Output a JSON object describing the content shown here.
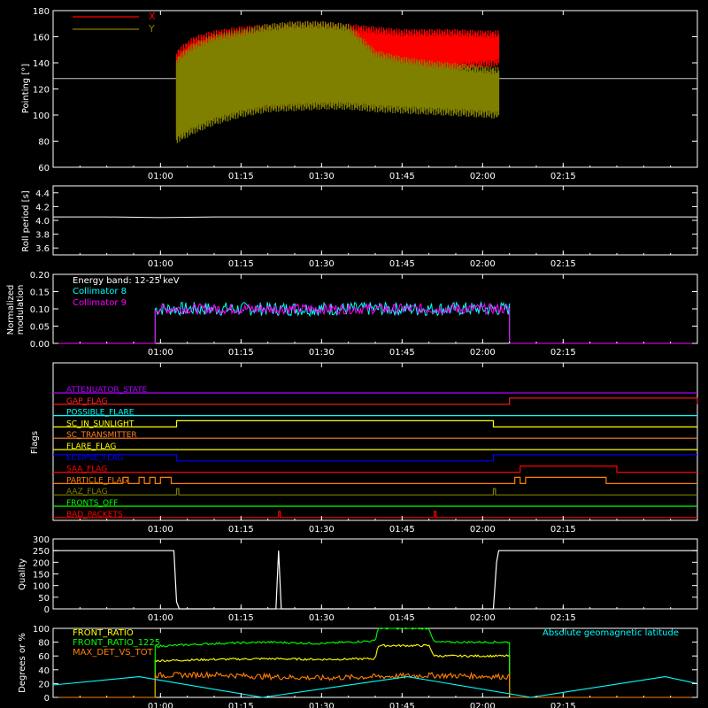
{
  "chart_data": [
    {
      "type": "line",
      "ylabel": "Pointing [°]",
      "ylim": [
        60,
        180
      ],
      "yticks": [
        60,
        80,
        100,
        120,
        140,
        160,
        180
      ],
      "xlim_minutes": [
        40,
        160
      ],
      "xticks": [
        "01:00",
        "01:15",
        "01:30",
        "01:45",
        "02:00",
        "02:15"
      ],
      "legend": [
        "X",
        "Y"
      ],
      "colors": {
        "X": "#ff0000",
        "Y": "#808000",
        "reference": "#c8c8c8"
      },
      "reference_line": 128,
      "series": [
        {
          "name": "X",
          "start_time": "01:03",
          "end_time": "02:03",
          "upper_envelope": [
            [
              63,
              150
            ],
            [
              66,
              160
            ],
            [
              70,
              165
            ],
            [
              75,
              168
            ],
            [
              80,
              170
            ],
            [
              85,
              172
            ],
            [
              90,
              172
            ],
            [
              95,
              170
            ],
            [
              100,
              168
            ],
            [
              105,
              166
            ],
            [
              110,
              166
            ],
            [
              115,
              166
            ],
            [
              120,
              165
            ],
            [
              123,
              165
            ]
          ],
          "lower_envelope": [
            [
              63,
              80
            ],
            [
              66,
              90
            ],
            [
              70,
              97
            ],
            [
              75,
              102
            ],
            [
              80,
              104
            ],
            [
              85,
              106
            ],
            [
              90,
              107
            ],
            [
              95,
              108
            ],
            [
              100,
              125
            ],
            [
              105,
              130
            ],
            [
              110,
              132
            ],
            [
              115,
              134
            ],
            [
              120,
              136
            ],
            [
              123,
              137
            ]
          ]
        },
        {
          "name": "Y",
          "start_time": "01:03",
          "end_time": "02:03",
          "upper_envelope": [
            [
              63,
              145
            ],
            [
              66,
              155
            ],
            [
              70,
              162
            ],
            [
              75,
              166
            ],
            [
              80,
              170
            ],
            [
              85,
              172
            ],
            [
              90,
              172
            ],
            [
              95,
              170
            ],
            [
              100,
              150
            ],
            [
              105,
              145
            ],
            [
              110,
              142
            ],
            [
              115,
              140
            ],
            [
              120,
              138
            ],
            [
              123,
              137
            ]
          ],
          "lower_envelope": [
            [
              63,
              78
            ],
            [
              66,
              85
            ],
            [
              70,
              92
            ],
            [
              75,
              98
            ],
            [
              80,
              102
            ],
            [
              85,
              103
            ],
            [
              90,
              104
            ],
            [
              95,
              104
            ],
            [
              100,
              102
            ],
            [
              105,
              101
            ],
            [
              110,
              100
            ],
            [
              115,
              99
            ],
            [
              120,
              98
            ],
            [
              123,
              97
            ]
          ]
        }
      ]
    },
    {
      "type": "line",
      "ylabel": "Roll period [s]",
      "ylim": [
        3.5,
        4.5
      ],
      "yticks": [
        "3.6",
        "3.8",
        "4.0",
        "4.2",
        "4.4"
      ],
      "xlim_minutes": [
        40,
        160
      ],
      "xticks": [
        "01:00",
        "01:15",
        "01:30",
        "01:45",
        "02:00",
        "02:15"
      ],
      "series": [
        {
          "name": "",
          "x": [
            40,
            50,
            60,
            70,
            80,
            90,
            100,
            110,
            120,
            130,
            140,
            150,
            160
          ],
          "y": [
            4.05,
            4.05,
            4.04,
            4.05,
            4.05,
            4.05,
            4.05,
            4.05,
            4.05,
            4.05,
            4.05,
            4.05,
            4.05
          ]
        }
      ]
    },
    {
      "type": "line",
      "ylabel": "Normalized modulation",
      "ylim": [
        0,
        0.2
      ],
      "yticks": [
        "0.00",
        "0.05",
        "0.10",
        "0.15",
        "0.20"
      ],
      "xlim_minutes": [
        40,
        160
      ],
      "xticks": [
        "01:00",
        "01:15",
        "01:30",
        "01:45",
        "02:00",
        "02:15"
      ],
      "annotation": "Energy band: 12-25 keV",
      "legend": [
        "Collimator 8",
        "Collimator 9"
      ],
      "colors": {
        "Collimator 8": "#00ffff",
        "Collimator 9": "#ff00ff"
      },
      "series": [
        {
          "name": "Collimator 8",
          "start_time": "00:59",
          "end_time": "02:05",
          "mean": 0.1,
          "spread": 0.02
        },
        {
          "name": "Collimator 9",
          "start_time": "00:59",
          "end_time": "02:05",
          "mean": 0.1,
          "spread": 0.015
        }
      ]
    },
    {
      "type": "line",
      "ylabel": "Flags",
      "xlim_minutes": [
        40,
        160
      ],
      "xticks": [
        "01:00",
        "01:15",
        "01:30",
        "01:45",
        "02:00",
        "02:15"
      ],
      "flags": [
        {
          "name": "ATTENUATOR_STATE",
          "color": "#b000ff",
          "high": []
        },
        {
          "name": "GAP_FLAG",
          "color": "#ff2020",
          "high": [
            [
              125,
              160
            ]
          ]
        },
        {
          "name": "POSSIBLE_FLARE",
          "color": "#00ffff",
          "high": []
        },
        {
          "name": "SC_IN_SUNLIGHT",
          "color": "#ffff00",
          "high": [
            [
              63,
              122
            ]
          ]
        },
        {
          "name": "SC_TRANSMITTER",
          "color": "#ff8020",
          "high": []
        },
        {
          "name": "FLARE_FLAG",
          "color": "#ffff00",
          "high": []
        },
        {
          "name": "ECLIPSE_FLAG",
          "color": "#0000ff",
          "high": [
            [
              40,
              63
            ],
            [
              122,
              160
            ]
          ]
        },
        {
          "name": "SAA_FLAG",
          "color": "#ff0000",
          "high": [
            [
              127,
              145
            ]
          ]
        },
        {
          "name": "PARTICLE_FLAG",
          "color": "#ff8000",
          "high": [
            [
              53,
              54
            ],
            [
              56,
              57
            ],
            [
              58,
              59
            ],
            [
              60,
              62
            ],
            [
              126,
              127
            ],
            [
              128,
              143
            ]
          ]
        },
        {
          "name": "AAZ_FLAG",
          "color": "#808000",
          "high": [
            [
              63,
              63.4
            ],
            [
              122,
              122.4
            ]
          ]
        },
        {
          "name": "FRONTS_OFF",
          "color": "#00ff00",
          "high": []
        },
        {
          "name": "BAD_PACKETS",
          "color": "#ff0000",
          "high": [
            [
              82,
              82.3
            ],
            [
              111,
              111.3
            ]
          ]
        }
      ]
    },
    {
      "type": "line",
      "ylabel": "Quality",
      "ylim": [
        0,
        300
      ],
      "yticks": [
        0,
        50,
        100,
        150,
        200,
        250,
        300
      ],
      "xlim_minutes": [
        40,
        160
      ],
      "xticks": [
        "01:00",
        "01:15",
        "01:30",
        "01:45",
        "02:00",
        "02:15"
      ],
      "series": [
        {
          "name": "",
          "x": [
            40,
            62.5,
            63,
            63.5,
            81.5,
            82,
            82.5,
            122,
            122.6,
            123,
            160
          ],
          "y": [
            250,
            250,
            30,
            0,
            0,
            250,
            0,
            0,
            200,
            250,
            250
          ]
        }
      ]
    },
    {
      "type": "line",
      "ylabel": "Degrees or %",
      "ylim": [
        0,
        100
      ],
      "yticks": [
        0,
        20,
        40,
        60,
        80,
        100
      ],
      "xlim_minutes": [
        40,
        160
      ],
      "xticks": [
        "01:00",
        "01:15",
        "01:30",
        "01:45",
        "02:00",
        "02:15"
      ],
      "legend": [
        "FRONT_RATIO",
        "FRONT_RATIO_1225",
        "MAX_DET_VS_TOT",
        "Absolute geomagnetic latitude"
      ],
      "colors": {
        "FRONT_RATIO": "#ffff00",
        "FRONT_RATIO_1225": "#00ff00",
        "MAX_DET_VS_TOT": "#ff8000",
        "Absolute geomagnetic latitude": "#00ffff"
      },
      "series": [
        {
          "name": "FRONT_RATIO",
          "x": [
            59,
            70,
            80,
            90,
            100,
            100.5,
            110,
            111,
            125
          ],
          "y": [
            53,
            55,
            56,
            55,
            56,
            75,
            75,
            60,
            60
          ]
        },
        {
          "name": "FRONT_RATIO_1225",
          "x": [
            59,
            70,
            80,
            90,
            100,
            100.5,
            110,
            111,
            125
          ],
          "y": [
            74,
            78,
            80,
            78,
            82,
            100,
            100,
            80,
            80
          ]
        },
        {
          "name": "MAX_DET_VS_TOT",
          "x": [
            59,
            70,
            80,
            90,
            100,
            110,
            125
          ],
          "y": [
            32,
            33,
            30,
            28,
            30,
            32,
            30
          ]
        },
        {
          "name": "Absolute geomagnetic latitude",
          "x": [
            40,
            56,
            79,
            106,
            129,
            154,
            160
          ],
          "y": [
            18,
            30,
            0,
            30,
            0,
            30,
            20
          ]
        }
      ]
    }
  ]
}
